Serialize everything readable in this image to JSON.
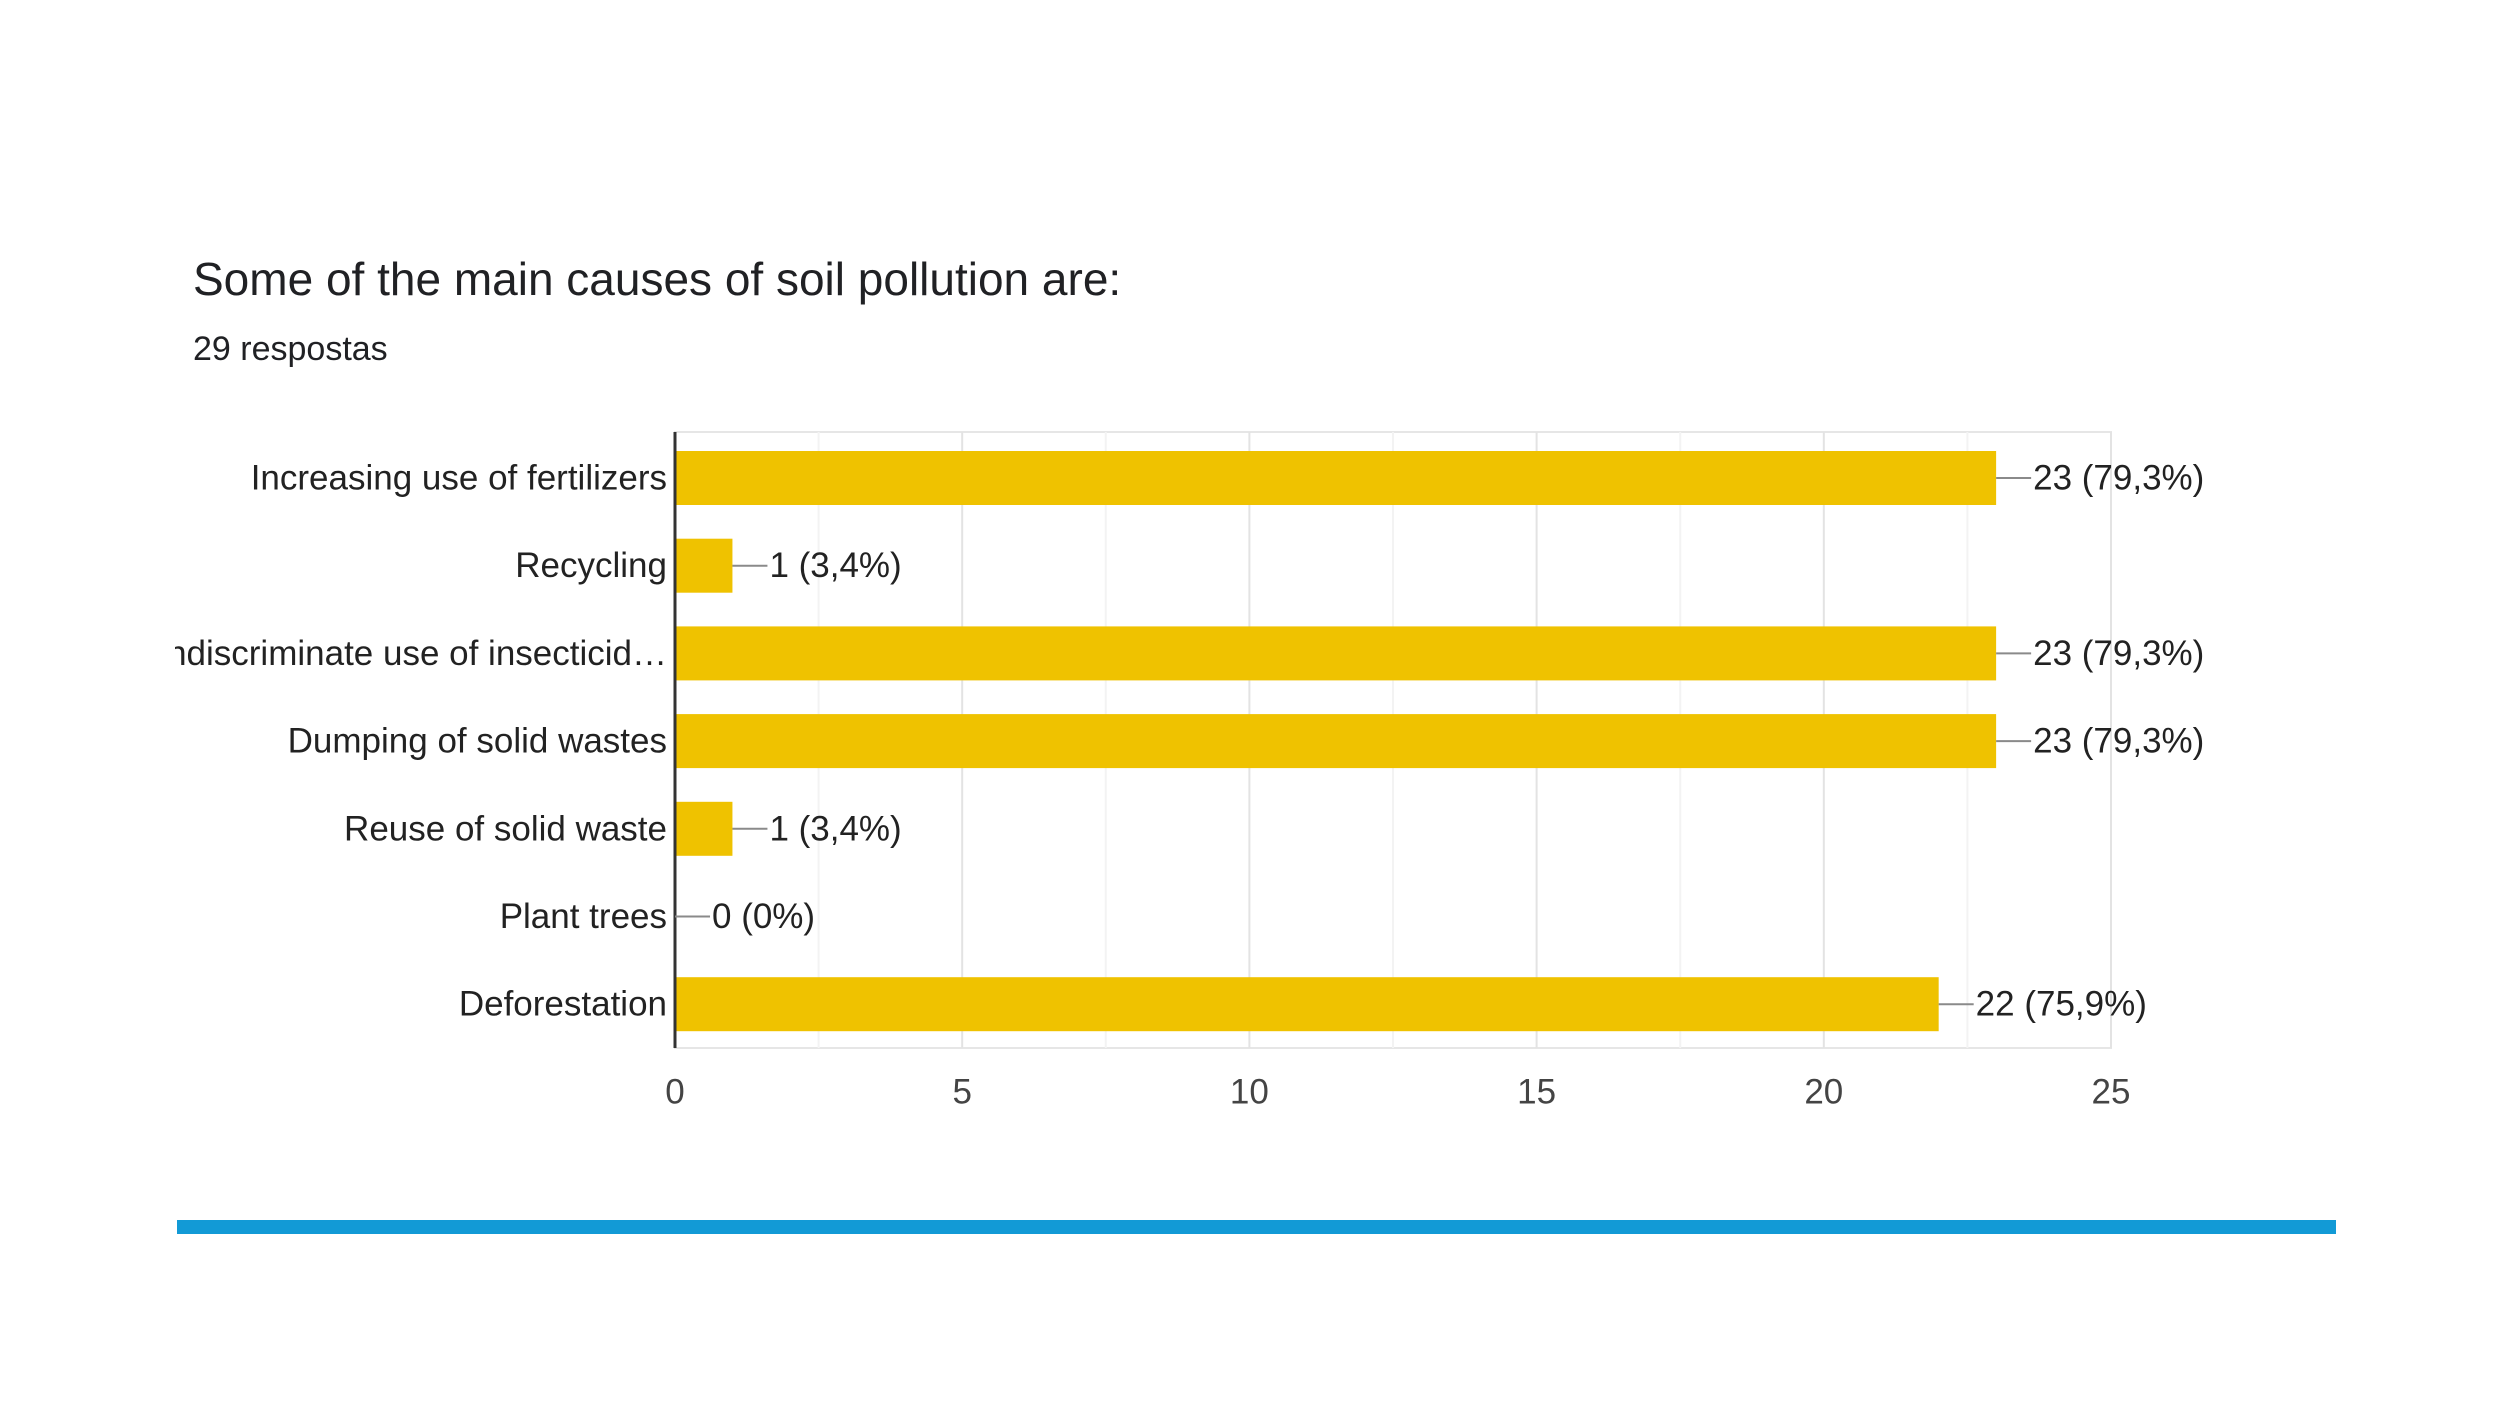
{
  "card": {
    "title": "Some of the main causes of soil pollution are:",
    "subtitle": "29 respostas"
  },
  "colors": {
    "bar": "#efc200",
    "rule": "#129ad6",
    "text": "#202124"
  },
  "chart_data": {
    "type": "bar",
    "orientation": "horizontal",
    "categories": [
      "Increasing use of fertilizers",
      "Recycling",
      "Indiscriminate use of insecticid…",
      "Dumping of solid wastes",
      "Reuse of solid waste",
      "Plant trees",
      "Deforestation"
    ],
    "values": [
      23,
      1,
      23,
      23,
      1,
      0,
      22
    ],
    "data_labels": [
      "23 (79,3%)",
      "1 (3,4%)",
      "23 (79,3%)",
      "23 (79,3%)",
      "1 (3,4%)",
      "0 (0%)",
      "22 (75,9%)"
    ],
    "xlim": [
      0,
      25
    ],
    "xticks": [
      0,
      5,
      10,
      15,
      20,
      25
    ],
    "grid": true
  }
}
